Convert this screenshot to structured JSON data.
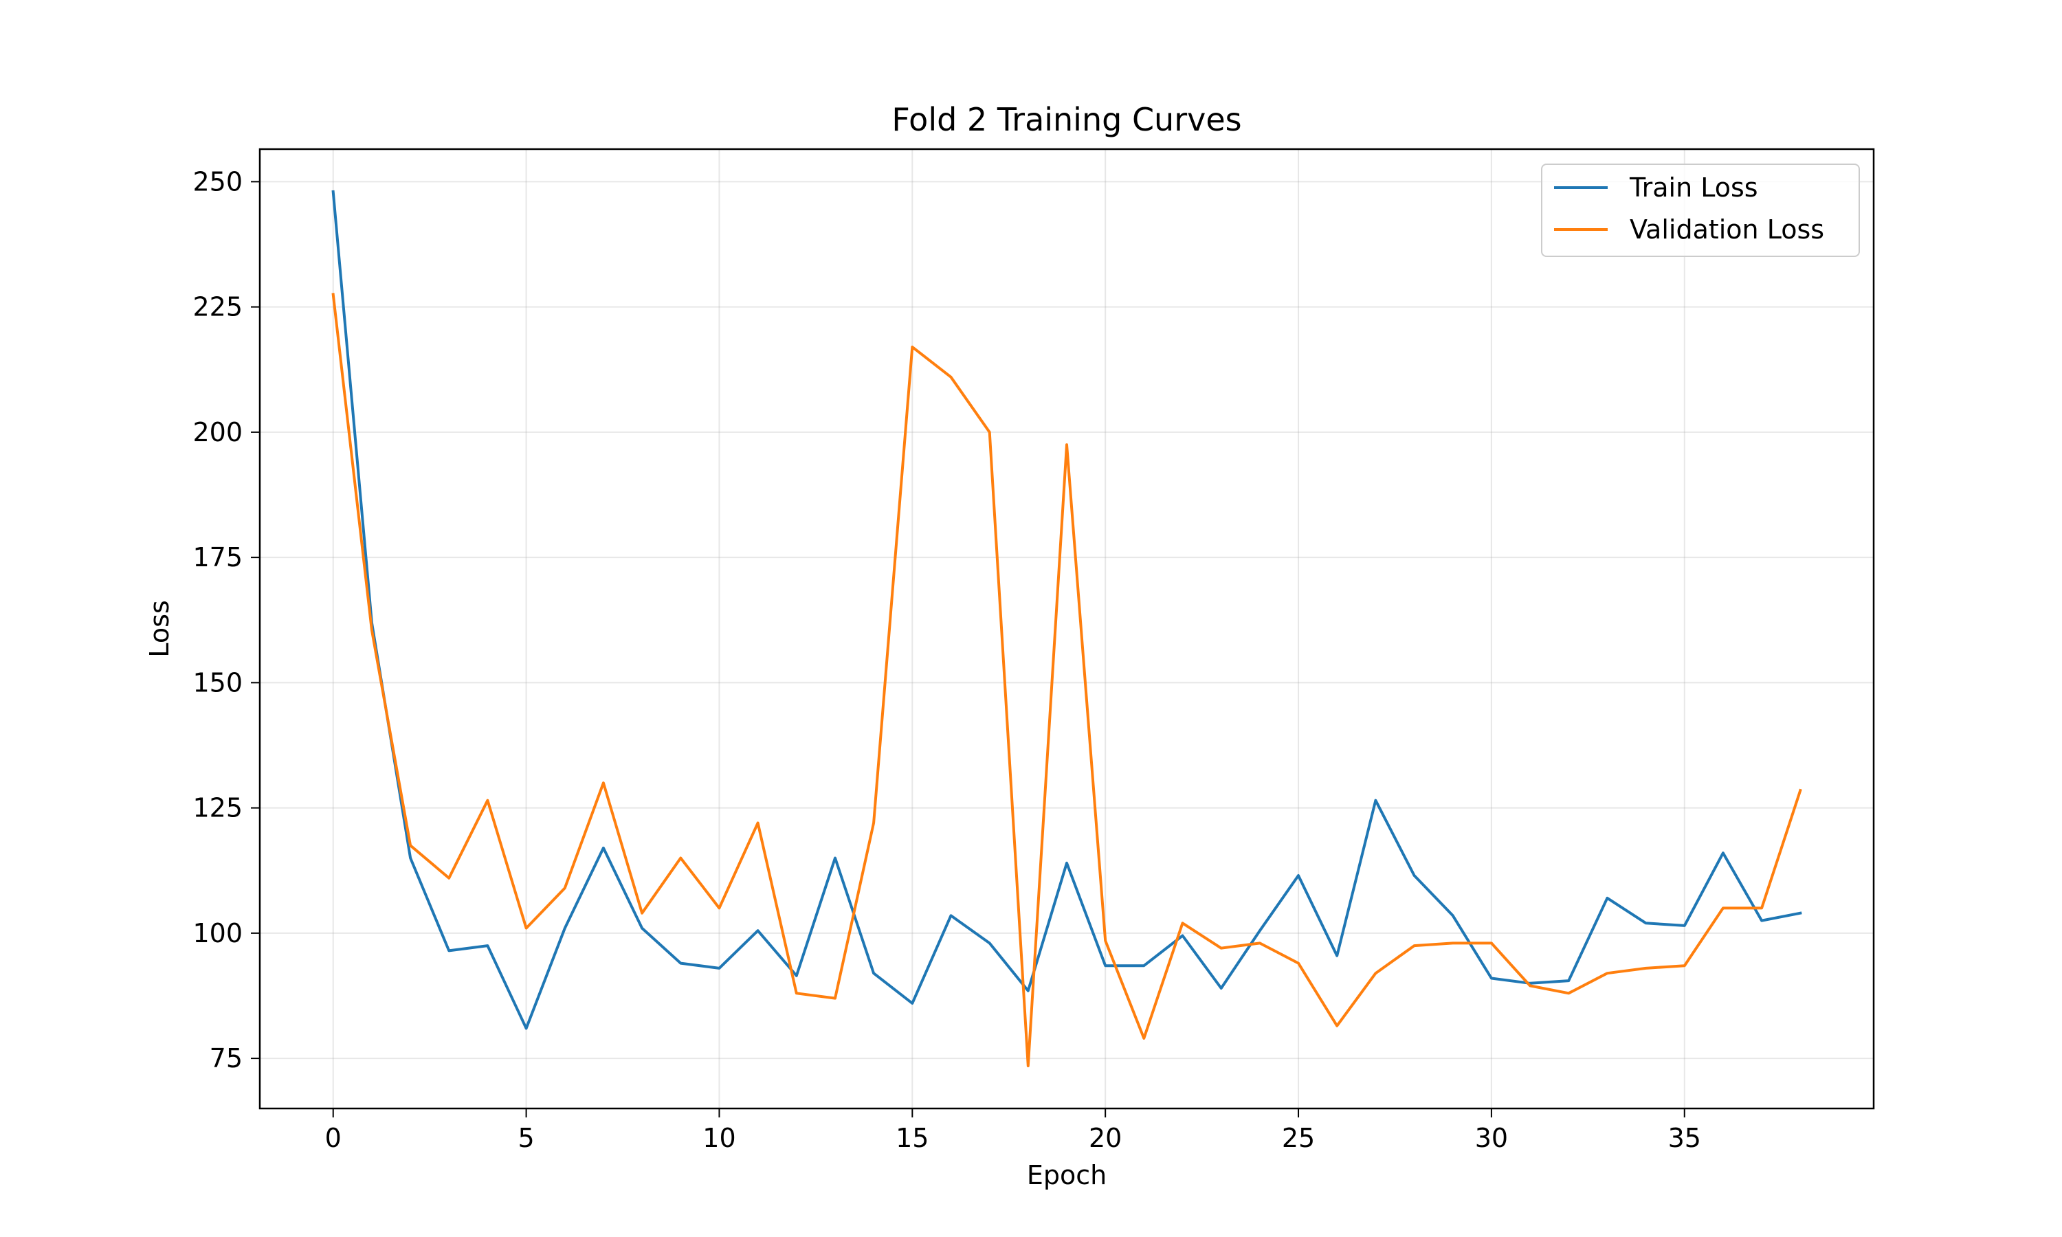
{
  "chart_data": {
    "type": "line",
    "title": "Fold 2 Training Curves",
    "xlabel": "Epoch",
    "ylabel": "Loss",
    "xlim": [
      -1.9,
      39.9
    ],
    "ylim": [
      65,
      256.5
    ],
    "xticks": [
      0,
      5,
      10,
      15,
      20,
      25,
      30,
      35
    ],
    "yticks": [
      75,
      100,
      125,
      150,
      175,
      200,
      225,
      250
    ],
    "grid": true,
    "legend_position": "top-right",
    "x": [
      0,
      1,
      2,
      3,
      4,
      5,
      6,
      7,
      8,
      9,
      10,
      11,
      12,
      13,
      14,
      15,
      16,
      17,
      18,
      19,
      20,
      21,
      22,
      23,
      24,
      25,
      26,
      27,
      28,
      29,
      30,
      31,
      32,
      33,
      34,
      35,
      36,
      37,
      38
    ],
    "series": [
      {
        "name": "Train Loss",
        "color": "#1f77b4",
        "values": [
          248,
          162,
          115,
          96.5,
          97.5,
          81,
          101,
          117,
          101,
          94,
          93,
          100.5,
          91.5,
          115,
          92,
          86,
          103.5,
          98,
          88.5,
          114,
          93.5,
          93.5,
          99.5,
          89,
          100.5,
          111.5,
          95.5,
          126.5,
          111.5,
          103.5,
          91,
          90,
          90.5,
          107,
          102,
          101.5,
          116,
          102.5,
          104
        ]
      },
      {
        "name": "Validation Loss",
        "color": "#ff7f0e",
        "values": [
          227.5,
          160.5,
          117.5,
          111,
          126.5,
          101,
          109,
          130,
          104,
          115,
          105,
          122,
          88,
          87,
          122,
          217,
          211,
          200,
          73.5,
          197.5,
          98.5,
          79,
          102,
          97,
          98,
          94,
          81.5,
          92,
          97.5,
          98,
          98,
          89.5,
          88,
          92,
          93,
          93.5,
          105,
          105,
          128.5
        ]
      }
    ]
  }
}
